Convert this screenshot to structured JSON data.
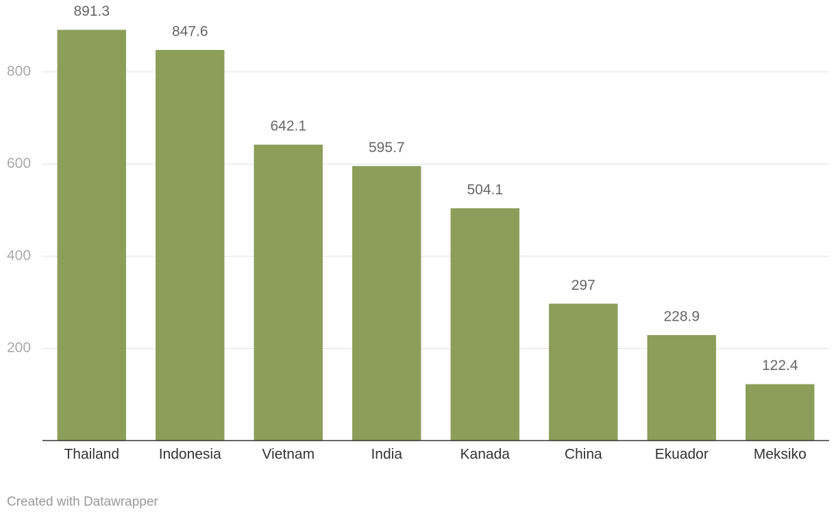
{
  "chart_data": {
    "type": "bar",
    "categories": [
      "Thailand",
      "Indonesia",
      "Vietnam",
      "India",
      "Kanada",
      "China",
      "Ekuador",
      "Meksiko"
    ],
    "values": [
      891.3,
      847.6,
      642.1,
      595.7,
      504.1,
      297,
      228.9,
      122.4
    ],
    "color": "#8c9e5a",
    "ylim": [
      0,
      956
    ],
    "yticks": [
      200,
      400,
      600,
      800
    ],
    "grid": true,
    "footer": "Created with Datawrapper"
  }
}
